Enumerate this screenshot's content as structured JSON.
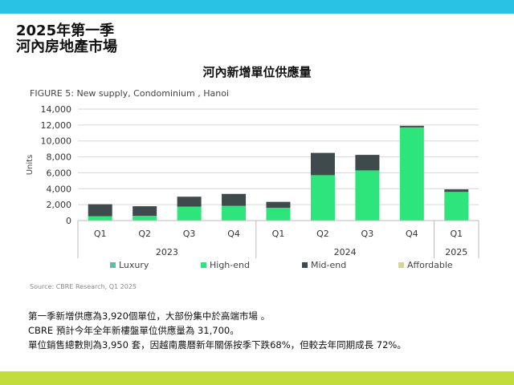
{
  "heading": {
    "line1": "2025年第一季",
    "line2": "河內房地產市場"
  },
  "chart_title": "河內新增單位供應量",
  "figure_label": "FIGURE 5: New supply, Condominium , Hanoi",
  "source": "Source: CBRE Research, Q1 2025",
  "summary": [
    "第一季新增供應為3,920個單位，大部份集中於高端市場 。",
    "CBRE 預計今年全年新樓盤單位供應量為 31,700。",
    "單位銷售總數則為3,950 套，因越南農曆新年關係按季下跌68%，但較去年同期成長 72%。"
  ],
  "colors": {
    "luxury": "#5bbfa9",
    "high_end": "#2ee57b",
    "mid_end": "#3f4a4c",
    "affordable": "#d9d49c",
    "top_bar": "#29c1e4",
    "bottom_bar": "#c2dc3e"
  },
  "chart_data": {
    "type": "bar",
    "stacked": true,
    "ylabel": "Units",
    "ylim": [
      0,
      14000
    ],
    "yticks": [
      "0",
      "2,000",
      "4,000",
      "6,000",
      "8,000",
      "10,000",
      "12,000",
      "14,000"
    ],
    "grid": true,
    "legend_position": "bottom",
    "categories": [
      "Q1",
      "Q2",
      "Q3",
      "Q4",
      "Q1",
      "Q2",
      "Q3",
      "Q4",
      "Q1"
    ],
    "groups": [
      {
        "label": "2023",
        "count": 4
      },
      {
        "label": "2024",
        "count": 4
      },
      {
        "label": "2025",
        "count": 1
      }
    ],
    "series": [
      {
        "name": "Luxury",
        "color": "#5bbfa9",
        "values": [
          0,
          0,
          0,
          0,
          0,
          0,
          0,
          0,
          0
        ]
      },
      {
        "name": "High-end",
        "color": "#2ee57b",
        "values": [
          550,
          600,
          1750,
          1850,
          1600,
          5700,
          6300,
          11700,
          3600
        ]
      },
      {
        "name": "Mid-end",
        "color": "#3f4a4c",
        "values": [
          1500,
          1200,
          1250,
          1500,
          750,
          2800,
          1950,
          200,
          320
        ]
      },
      {
        "name": "Affordable",
        "color": "#d9d49c",
        "values": [
          0,
          0,
          0,
          0,
          0,
          0,
          0,
          0,
          0
        ]
      }
    ]
  }
}
